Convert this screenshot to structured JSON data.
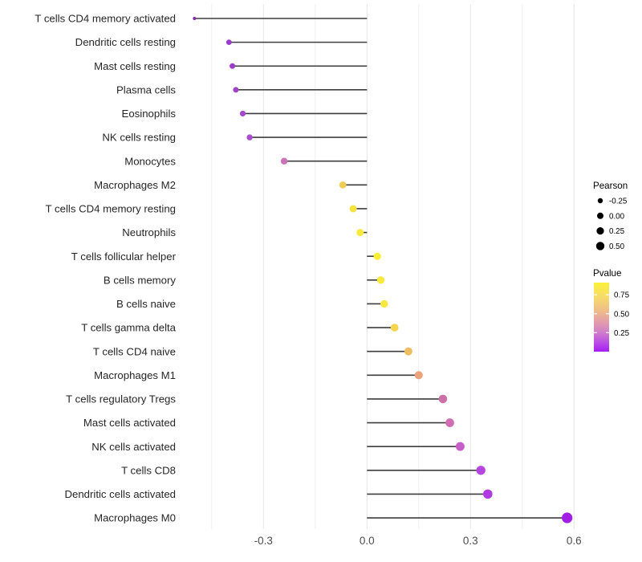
{
  "chart_data": {
    "type": "scatter",
    "variant": "lollipop",
    "title": "",
    "xlabel": "",
    "ylabel": "",
    "x_tick_values": [
      -0.3,
      0.0,
      0.3,
      0.6
    ],
    "x_tick_labels": [
      "-0.3",
      "0.0",
      "0.3",
      "0.6"
    ],
    "x_minor_tick_values": [
      -0.45,
      -0.15,
      0.15,
      0.45
    ],
    "xlim": [
      -0.55,
      0.63
    ],
    "grid": "vertical-only",
    "legend_position": "right",
    "rows": [
      {
        "label": "T cells CD4 memory activated",
        "pearson": -0.5,
        "pvalue_est": 0.05,
        "color": "#8a28ad",
        "radius": 2.0
      },
      {
        "label": "Dendritic cells resting",
        "pearson": -0.4,
        "pvalue_est": 0.12,
        "color": "#9c3bcb",
        "radius": 3.4
      },
      {
        "label": "Mast cells resting",
        "pearson": -0.39,
        "pvalue_est": 0.13,
        "color": "#9d3cc9",
        "radius": 3.5
      },
      {
        "label": "Plasma cells",
        "pearson": -0.38,
        "pvalue_est": 0.14,
        "color": "#a143c8",
        "radius": 3.5
      },
      {
        "label": "Eosinophils",
        "pearson": -0.36,
        "pvalue_est": 0.16,
        "color": "#a647cc",
        "radius": 3.6
      },
      {
        "label": "NK cells resting",
        "pearson": -0.34,
        "pvalue_est": 0.18,
        "color": "#ab4cce",
        "radius": 3.7
      },
      {
        "label": "Monocytes",
        "pearson": -0.24,
        "pvalue_est": 0.3,
        "color": "#ca73b9",
        "radius": 4.2
      },
      {
        "label": "Macrophages M2",
        "pearson": -0.07,
        "pvalue_est": 0.65,
        "color": "#f2cb57",
        "radius": 4.4
      },
      {
        "label": "T cells CD4 memory resting",
        "pearson": -0.04,
        "pvalue_est": 0.8,
        "color": "#f7e33f",
        "radius": 4.5
      },
      {
        "label": "Neutrophils",
        "pearson": -0.02,
        "pvalue_est": 0.83,
        "color": "#f8ea3c",
        "radius": 4.5
      },
      {
        "label": "T cells follicular helper",
        "pearson": 0.03,
        "pvalue_est": 0.86,
        "color": "#faee35",
        "radius": 4.6
      },
      {
        "label": "B cells memory",
        "pearson": 0.04,
        "pvalue_est": 0.82,
        "color": "#f9e93c",
        "radius": 4.7
      },
      {
        "label": "B cells naive",
        "pearson": 0.05,
        "pvalue_est": 0.81,
        "color": "#f9e73e",
        "radius": 4.7
      },
      {
        "label": "T cells gamma delta",
        "pearson": 0.08,
        "pvalue_est": 0.7,
        "color": "#f4d54d",
        "radius": 4.8
      },
      {
        "label": "T cells CD4 naive",
        "pearson": 0.12,
        "pvalue_est": 0.6,
        "color": "#f0bc62",
        "radius": 5.0
      },
      {
        "label": "Macrophages M1",
        "pearson": 0.15,
        "pvalue_est": 0.5,
        "color": "#eca27a",
        "radius": 5.1
      },
      {
        "label": "T cells regulatory  Tregs",
        "pearson": 0.22,
        "pvalue_est": 0.35,
        "color": "#cd6fa8",
        "radius": 5.3
      },
      {
        "label": "Mast cells activated",
        "pearson": 0.24,
        "pvalue_est": 0.33,
        "color": "#d06db2",
        "radius": 5.4
      },
      {
        "label": "NK cells activated",
        "pearson": 0.27,
        "pvalue_est": 0.25,
        "color": "#c75fc8",
        "radius": 5.5
      },
      {
        "label": "T cells CD8",
        "pearson": 0.33,
        "pvalue_est": 0.15,
        "color": "#b746e0",
        "radius": 5.7
      },
      {
        "label": "Dendritic cells activated",
        "pearson": 0.35,
        "pvalue_est": 0.12,
        "color": "#b13be2",
        "radius": 5.8
      },
      {
        "label": "Macrophages M0",
        "pearson": 0.58,
        "pvalue_est": 0.02,
        "color": "#a21ee4",
        "radius": 6.6
      }
    ],
    "legend_size": {
      "title": "Pearson",
      "dot_color": "#000000",
      "entries": [
        {
          "label": "-0.25",
          "radius": 3.2
        },
        {
          "label": "0.00",
          "radius": 4.0
        },
        {
          "label": "0.25",
          "radius": 4.6
        },
        {
          "label": "0.50",
          "radius": 5.2
        }
      ]
    },
    "legend_color": {
      "title": "Pvalue",
      "tick_labels": [
        "0.75",
        "0.50",
        "0.25"
      ],
      "tick_values": [
        0.75,
        0.5,
        0.25
      ],
      "bar_range": [
        0.0,
        0.91
      ],
      "gradient_stops": [
        {
          "offset": "0%",
          "color": "#fbf139"
        },
        {
          "offset": "20%",
          "color": "#f6dc69"
        },
        {
          "offset": "40%",
          "color": "#efbe88"
        },
        {
          "offset": "55%",
          "color": "#e5a0a6"
        },
        {
          "offset": "70%",
          "color": "#d383c6"
        },
        {
          "offset": "85%",
          "color": "#bc55e3"
        },
        {
          "offset": "100%",
          "color": "#a61ef4"
        }
      ]
    },
    "colors": {
      "stem": "#3d3d3d",
      "grid_major": "#e4e4e4",
      "grid_minor": "#efefef",
      "axis_text": "#4d4d4d",
      "category_text": "#262626",
      "background": "#ffffff"
    }
  }
}
